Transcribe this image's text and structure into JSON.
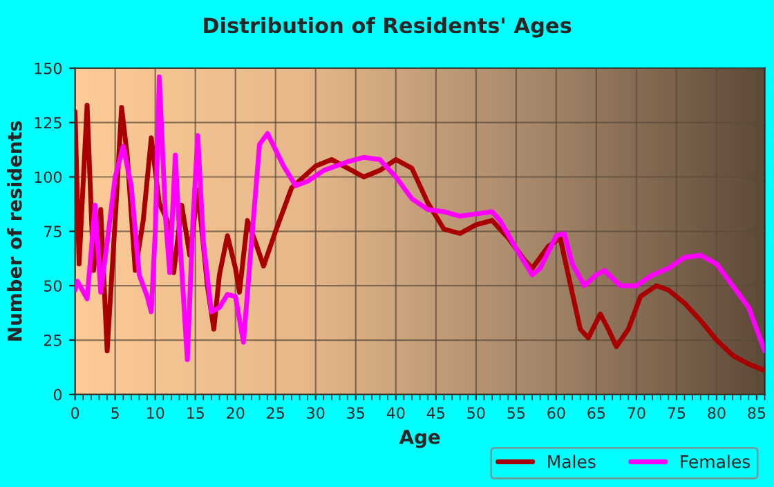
{
  "chart_data": {
    "type": "line",
    "title": "Distribution of Residents' Ages",
    "xlabel": "Age",
    "ylabel": "Number of residents",
    "xlim": [
      0,
      86
    ],
    "xticks": [
      0,
      5,
      10,
      15,
      20,
      25,
      30,
      35,
      40,
      45,
      50,
      55,
      60,
      65,
      70,
      75,
      80,
      85
    ],
    "ylim": [
      0,
      150
    ],
    "yticks": [
      0,
      25,
      50,
      75,
      100,
      125,
      150
    ],
    "grid": true,
    "legend": "bottom right",
    "marker": "none",
    "line_style": "solid",
    "series": [
      {
        "name": "Males",
        "color": "#a80000",
        "x": [
          0,
          0.5,
          1.5,
          2.3,
          3.2,
          4,
          5,
          5.8,
          6.5,
          7.5,
          8.5,
          9.5,
          10.5,
          11.5,
          12.3,
          13.3,
          14.3,
          15.3,
          16.5,
          17.3,
          18,
          19,
          20,
          20.5,
          21.5,
          22.5,
          23.5,
          25,
          27,
          30,
          32,
          34,
          36,
          38,
          40,
          42,
          44,
          46,
          48,
          50,
          52,
          54,
          56,
          57,
          59,
          60.5,
          61.5,
          63,
          64,
          65.5,
          66.5,
          67.5,
          69,
          70.5,
          72.5,
          74,
          76,
          78,
          80,
          82,
          84,
          86
        ],
        "values": [
          130,
          60,
          133,
          57,
          85,
          20,
          80,
          132,
          110,
          57,
          80,
          118,
          88,
          80,
          56,
          87,
          64,
          94,
          50,
          30,
          55,
          73,
          58,
          47,
          80,
          70,
          59,
          75,
          95,
          105,
          108,
          104,
          100,
          103,
          108,
          104,
          88,
          76,
          74,
          78,
          80,
          72,
          62,
          58,
          68,
          72,
          55,
          30,
          26,
          37,
          30,
          22,
          30,
          45,
          50,
          48,
          42,
          34,
          25,
          18,
          14,
          11
        ]
      },
      {
        "name": "Females",
        "color": "#ff00ff",
        "x": [
          0,
          0.3,
          1.5,
          2.5,
          3.2,
          4,
          5,
          6,
          7,
          8,
          9,
          9.5,
          10,
          10.5,
          11.3,
          11.8,
          12.5,
          13,
          14,
          14.7,
          15.3,
          16,
          17,
          18,
          19,
          20,
          21,
          22,
          23,
          24,
          26,
          27.5,
          29,
          31,
          34,
          36,
          38,
          40,
          42,
          44,
          46,
          48,
          50,
          52,
          53,
          55,
          57,
          58,
          60,
          61,
          62,
          63.5,
          65,
          66,
          68,
          70,
          72,
          74,
          76,
          78,
          80,
          82,
          84,
          86
        ],
        "values": [
          48,
          52,
          44,
          87,
          47,
          70,
          100,
          114,
          96,
          55,
          45,
          38,
          75,
          146,
          80,
          56,
          110,
          75,
          16,
          80,
          119,
          70,
          38,
          40,
          46,
          45,
          24,
          70,
          115,
          120,
          105,
          96,
          98,
          103,
          107,
          109,
          108,
          100,
          90,
          85,
          84,
          82,
          83,
          84,
          80,
          67,
          55,
          58,
          73,
          74,
          60,
          50,
          55,
          57,
          50,
          50,
          55,
          58,
          63,
          64,
          60,
          50,
          40,
          20
        ]
      }
    ]
  }
}
